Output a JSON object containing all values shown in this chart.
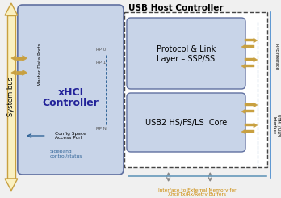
{
  "bg_color": "#f0f0f0",
  "sysbus_fill": "#faf0c0",
  "sysbus_edge": "#c8a040",
  "xhci_fill": "#c8d4e8",
  "xhci_edge": "#6070a0",
  "usb_outer_edge": "#444444",
  "usb_inner_fill": "#c8d4e8",
  "usb_inner_edge": "#6070a0",
  "arrow_color": "#c8a040",
  "blue_line": "#4488cc",
  "blue_arrow": "#336699",
  "mem_arrow": "#888888",
  "mem_line": "#6699bb",
  "title": "USB Host Controller",
  "xhci_label_line1": "xHCI",
  "xhci_label_line2": "Controller",
  "master_data_ports": "Master Data Ports",
  "protocol_link_label": "Protocol & Link\nLayer – SSP/SS",
  "usb2_label": "USB2 HS/FS/LS  Core",
  "config_label": "Config Space\nAccess Port",
  "sideband_label": "Sideband\ncontrol/status",
  "memory_label": "Interface to External Memory for\nXhci/Tx/Rx/Retry Buffers",
  "pipe_label": "PIPEInterface",
  "utmi_label": "UTMI / ULPI\nInterface",
  "sysbus_label": "System bus",
  "rp0_label": "RP 0",
  "rp1_label": "RP 1",
  "rpn_label": "RP N"
}
